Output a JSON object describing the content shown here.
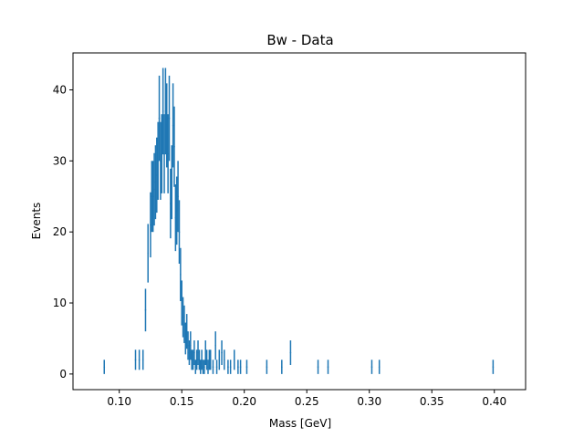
{
  "chart_data": {
    "type": "scatter",
    "title": "Bw - Data",
    "xlabel": "Mass [GeV]",
    "ylabel": "Events",
    "xlim": [
      0.063,
      0.425
    ],
    "ylim": [
      -2.2,
      45.2
    ],
    "xticks": [
      0.1,
      0.15,
      0.2,
      0.25,
      0.3,
      0.35,
      0.4
    ],
    "xtick_labels": [
      "0.10",
      "0.15",
      "0.20",
      "0.25",
      "0.30",
      "0.35",
      "0.40"
    ],
    "yticks": [
      0,
      10,
      20,
      30,
      40
    ],
    "ytick_labels": [
      "0",
      "10",
      "20",
      "30",
      "40"
    ],
    "grid": false,
    "error_bars": "sqrt(N)",
    "color": "#1f77b4",
    "x": [
      0.088,
      0.113,
      0.116,
      0.119,
      0.121,
      0.123,
      0.125,
      0.126,
      0.127,
      0.128,
      0.129,
      0.13,
      0.131,
      0.132,
      0.133,
      0.134,
      0.135,
      0.136,
      0.137,
      0.138,
      0.139,
      0.14,
      0.141,
      0.142,
      0.143,
      0.144,
      0.145,
      0.146,
      0.147,
      0.148,
      0.149,
      0.15,
      0.151,
      0.152,
      0.153,
      0.154,
      0.155,
      0.156,
      0.157,
      0.158,
      0.159,
      0.16,
      0.161,
      0.162,
      0.163,
      0.164,
      0.165,
      0.166,
      0.167,
      0.168,
      0.169,
      0.17,
      0.171,
      0.172,
      0.173,
      0.175,
      0.177,
      0.178,
      0.18,
      0.182,
      0.184,
      0.187,
      0.189,
      0.192,
      0.195,
      0.197,
      0.202,
      0.218,
      0.23,
      0.237,
      0.259,
      0.267,
      0.302,
      0.308,
      0.399
    ],
    "y": [
      1,
      2,
      2,
      2,
      9,
      17,
      21,
      25,
      25,
      26,
      27,
      28,
      30,
      36,
      30,
      31,
      37,
      31,
      37,
      35,
      31,
      36,
      24,
      27,
      35,
      32,
      22,
      23,
      25,
      20,
      14,
      10,
      8,
      7,
      5,
      6,
      4,
      3,
      4,
      2,
      2,
      3,
      1,
      2,
      3,
      2,
      1,
      2,
      1,
      1,
      3,
      2,
      1,
      2,
      2,
      1,
      4,
      1,
      2,
      3,
      2,
      1,
      1,
      2,
      1,
      1,
      1,
      1,
      1,
      3,
      1,
      1,
      1,
      1,
      1
    ]
  }
}
